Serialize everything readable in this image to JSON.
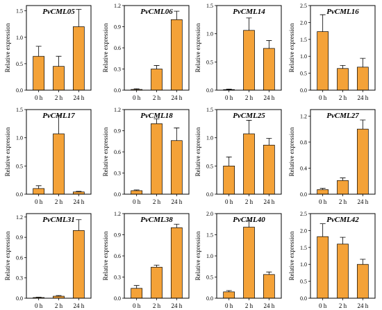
{
  "bar_color": "#F4A238",
  "chart_data": [
    {
      "type": "bar",
      "title": "PvCML05",
      "ylabel": "Relative expression",
      "categories": [
        "0 h",
        "2 h",
        "24 h"
      ],
      "values": [
        0.64,
        0.45,
        1.2
      ],
      "errors": [
        0.19,
        0.19,
        0.33
      ],
      "ylim": [
        0,
        1.6
      ],
      "yticks": [
        {
          "v": 0,
          "t": "0.0"
        },
        {
          "v": 0.5,
          "t": "0.5"
        },
        {
          "v": 1.0,
          "t": "1.0"
        },
        {
          "v": 1.5,
          "t": "1.5"
        }
      ]
    },
    {
      "type": "bar",
      "title": "PvCML06",
      "ylabel": "Relative expression",
      "categories": [
        "0 h",
        "2 h",
        "24 h"
      ],
      "values": [
        0.01,
        0.3,
        1.0
      ],
      "errors": [
        0.01,
        0.05,
        0.12
      ],
      "ylim": [
        0,
        1.2
      ],
      "yticks": [
        {
          "v": 0,
          "t": "0.0"
        },
        {
          "v": 0.3,
          "t": "0.3"
        },
        {
          "v": 0.6,
          "t": "0.6"
        },
        {
          "v": 0.9,
          "t": "0.9"
        },
        {
          "v": 1.2,
          "t": "1.2"
        }
      ]
    },
    {
      "type": "bar",
      "title": "PvCML14",
      "ylabel": "Relative expression",
      "categories": [
        "0 h",
        "2 h",
        "24 h"
      ],
      "values": [
        0.01,
        1.06,
        0.74
      ],
      "errors": [
        0.01,
        0.22,
        0.14
      ],
      "ylim": [
        0,
        1.5
      ],
      "yticks": [
        {
          "v": 0,
          "t": "0.0"
        },
        {
          "v": 0.5,
          "t": "0.5"
        },
        {
          "v": 1.0,
          "t": "1.0"
        },
        {
          "v": 1.5,
          "t": "1.5"
        }
      ]
    },
    {
      "type": "bar",
      "title": "PvCML16",
      "ylabel": "Relative expression",
      "categories": [
        "0 h",
        "2 h",
        "24 h"
      ],
      "values": [
        1.73,
        0.64,
        0.68
      ],
      "errors": [
        0.5,
        0.09,
        0.26
      ],
      "ylim": [
        0,
        2.5
      ],
      "yticks": [
        {
          "v": 0,
          "t": "0.0"
        },
        {
          "v": 0.5,
          "t": "0.5"
        },
        {
          "v": 1.0,
          "t": "1.0"
        },
        {
          "v": 1.5,
          "t": "1.5"
        },
        {
          "v": 2.0,
          "t": "2.0"
        },
        {
          "v": 2.5,
          "t": "2.5"
        }
      ]
    },
    {
      "type": "bar",
      "title": "PvCML17",
      "ylabel": "Relative expression",
      "categories": [
        "0 h",
        "2 h",
        "24 h"
      ],
      "values": [
        0.1,
        1.07,
        0.04
      ],
      "errors": [
        0.05,
        0.32,
        0.01
      ],
      "ylim": [
        0,
        1.5
      ],
      "yticks": [
        {
          "v": 0,
          "t": "0.0"
        },
        {
          "v": 0.5,
          "t": "0.5"
        },
        {
          "v": 1.0,
          "t": "1.0"
        },
        {
          "v": 1.5,
          "t": "1.5"
        }
      ]
    },
    {
      "type": "bar",
      "title": "PvCML18",
      "ylabel": "Relative expression",
      "categories": [
        "0 h",
        "2 h",
        "24 h"
      ],
      "values": [
        0.05,
        1.0,
        0.76
      ],
      "errors": [
        0.01,
        0.07,
        0.18
      ],
      "ylim": [
        0,
        1.2
      ],
      "yticks": [
        {
          "v": 0,
          "t": "0.0"
        },
        {
          "v": 0.3,
          "t": "0.3"
        },
        {
          "v": 0.6,
          "t": "0.6"
        },
        {
          "v": 0.9,
          "t": "0.9"
        },
        {
          "v": 1.2,
          "t": "1.2"
        }
      ]
    },
    {
      "type": "bar",
      "title": "PvCML25",
      "ylabel": "Relative expression",
      "categories": [
        "0 h",
        "2 h",
        "24 h"
      ],
      "values": [
        0.5,
        1.07,
        0.87
      ],
      "errors": [
        0.16,
        0.24,
        0.12
      ],
      "ylim": [
        0,
        1.5
      ],
      "yticks": [
        {
          "v": 0,
          "t": "0.0"
        },
        {
          "v": 0.5,
          "t": "0.5"
        },
        {
          "v": 1.0,
          "t": "1.0"
        },
        {
          "v": 1.5,
          "t": "1.5"
        }
      ]
    },
    {
      "type": "bar",
      "title": "PvCML27",
      "ylabel": "Relative expression",
      "categories": [
        "0 h",
        "2 h",
        "24 h"
      ],
      "values": [
        0.07,
        0.21,
        1.0
      ],
      "errors": [
        0.02,
        0.04,
        0.14
      ],
      "ylim": [
        0,
        1.3
      ],
      "yticks": [
        {
          "v": 0,
          "t": "0.0"
        },
        {
          "v": 0.4,
          "t": "0.4"
        },
        {
          "v": 0.8,
          "t": "0.8"
        },
        {
          "v": 1.2,
          "t": "1.2"
        }
      ]
    },
    {
      "type": "bar",
      "title": "PvCML31",
      "ylabel": "Relative expression",
      "categories": [
        "0 h",
        "2 h",
        "24 h"
      ],
      "values": [
        0.01,
        0.03,
        1.0
      ],
      "errors": [
        0.005,
        0.01,
        0.16
      ],
      "ylim": [
        0,
        1.25
      ],
      "yticks": [
        {
          "v": 0,
          "t": "0.0"
        },
        {
          "v": 0.3,
          "t": "0.3"
        },
        {
          "v": 0.6,
          "t": "0.6"
        },
        {
          "v": 0.9,
          "t": "0.9"
        },
        {
          "v": 1.2,
          "t": "1.2"
        }
      ]
    },
    {
      "type": "bar",
      "title": "PvCML38",
      "ylabel": "Relative expression",
      "categories": [
        "0 h",
        "2 h",
        "24 h"
      ],
      "values": [
        0.14,
        0.44,
        1.0
      ],
      "errors": [
        0.04,
        0.03,
        0.05
      ],
      "ylim": [
        0,
        1.2
      ],
      "yticks": [
        {
          "v": 0,
          "t": "0.0"
        },
        {
          "v": 0.3,
          "t": "0.3"
        },
        {
          "v": 0.6,
          "t": "0.6"
        },
        {
          "v": 0.9,
          "t": "0.9"
        },
        {
          "v": 1.2,
          "t": "1.2"
        }
      ]
    },
    {
      "type": "bar",
      "title": "PvCML40",
      "ylabel": "Relative expression",
      "categories": [
        "0 h",
        "2 h",
        "24 h"
      ],
      "values": [
        0.15,
        1.68,
        0.56
      ],
      "errors": [
        0.03,
        0.15,
        0.06
      ],
      "ylim": [
        0,
        2.0
      ],
      "yticks": [
        {
          "v": 0,
          "t": "0.0"
        },
        {
          "v": 0.5,
          "t": "0.5"
        },
        {
          "v": 1.0,
          "t": "1.0"
        },
        {
          "v": 1.5,
          "t": "1.5"
        },
        {
          "v": 2.0,
          "t": "2.0"
        }
      ]
    },
    {
      "type": "bar",
      "title": "PvCML42",
      "ylabel": "Relative expression",
      "categories": [
        "0 h",
        "2 h",
        "24 h"
      ],
      "values": [
        1.82,
        1.6,
        1.0
      ],
      "errors": [
        0.38,
        0.2,
        0.15
      ],
      "ylim": [
        0,
        2.5
      ],
      "yticks": [
        {
          "v": 0,
          "t": "0.0"
        },
        {
          "v": 0.5,
          "t": "0.5"
        },
        {
          "v": 1.0,
          "t": "1.0"
        },
        {
          "v": 1.5,
          "t": "1.5"
        },
        {
          "v": 2.0,
          "t": "2.0"
        },
        {
          "v": 2.5,
          "t": "2.5"
        }
      ]
    }
  ]
}
